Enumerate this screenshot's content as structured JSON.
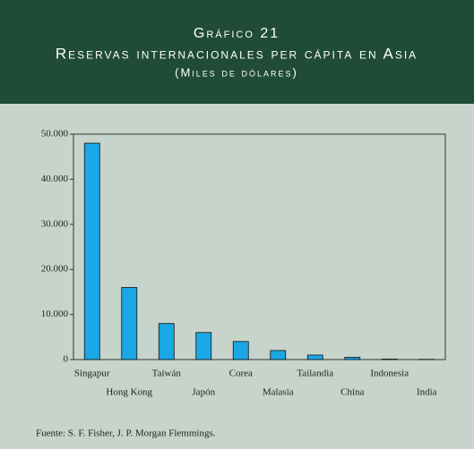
{
  "chart_data": {
    "type": "bar",
    "title": "Gráfico 21",
    "subtitle": "Reservas internacionales per cápita en Asia",
    "unit_label": "(Miles de dólares)",
    "categories": [
      "Singapur",
      "Hong Kong",
      "Taiwán",
      "Japón",
      "Corea",
      "Malasia",
      "Tailandia",
      "China",
      "Indonesia",
      "India"
    ],
    "values": [
      48000,
      16000,
      8000,
      6000,
      4000,
      2000,
      1000,
      500,
      100,
      50
    ],
    "color": "#1aa7e6",
    "ylim": [
      0,
      50000
    ],
    "yticks": [
      0,
      {
        "value": 10000,
        "label": "10.000"
      },
      {
        "value": 20000,
        "label": "20.000"
      },
      {
        "value": 30000,
        "label": "30.000"
      },
      {
        "value": 40000,
        "label": "40.000"
      },
      {
        "value": 50000,
        "label": "50.000"
      }
    ],
    "grid": false,
    "source": "Fuente: S. F. Fisher, J. P. Morgan Flemmings."
  }
}
